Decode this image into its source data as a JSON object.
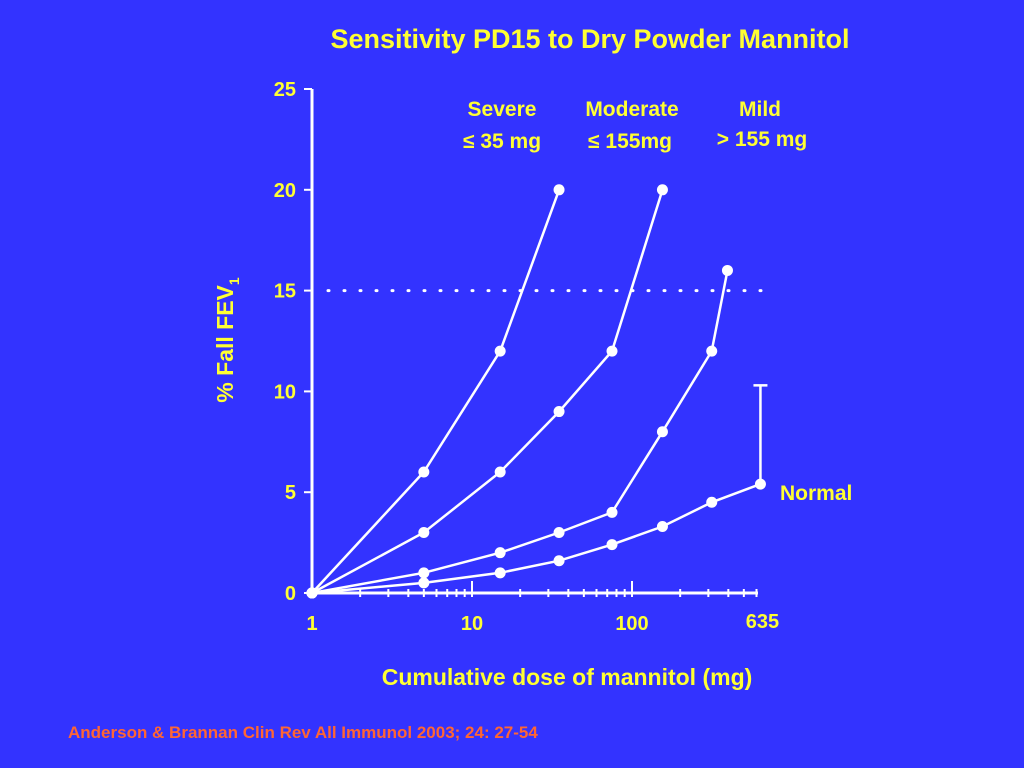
{
  "chart_data": {
    "type": "line",
    "title": "Sensitivity PD15 to Dry Powder Mannitol",
    "xlabel": "Cumulative dose of mannitol (mg)",
    "ylabel_main": "% Fall FEV",
    "ylabel_sub": "1",
    "x_scale": "log",
    "xlim": [
      1,
      635
    ],
    "ylim": [
      0,
      25
    ],
    "x_ticks": [
      "1",
      "10",
      "100",
      "635"
    ],
    "y_ticks": [
      "0",
      "5",
      "10",
      "15",
      "20",
      "25"
    ],
    "threshold_line": 15,
    "series": [
      {
        "name": "Severe",
        "x": [
          1,
          5,
          15,
          35
        ],
        "y": [
          0,
          6,
          12,
          20
        ]
      },
      {
        "name": "Moderate",
        "x": [
          1,
          5,
          15,
          35,
          75,
          155
        ],
        "y": [
          0,
          3,
          6,
          9,
          12,
          20
        ]
      },
      {
        "name": "Mild",
        "x": [
          1,
          5,
          15,
          35,
          75,
          155,
          315,
          395
        ],
        "y": [
          0,
          1,
          2,
          3,
          4,
          8,
          12,
          16
        ]
      },
      {
        "name": "Normal",
        "x": [
          1,
          5,
          15,
          35,
          75,
          155,
          315,
          635
        ],
        "y": [
          0,
          0.5,
          1,
          1.6,
          2.4,
          3.3,
          4.5,
          5.4
        ]
      }
    ],
    "error_bar": {
      "x": 635,
      "y_low": 5.4,
      "y_high": 10.3
    },
    "annotations": {
      "severe": {
        "line1": "Severe",
        "line2": "≤ 35 mg"
      },
      "moderate": {
        "line1": "Moderate",
        "line2": "≤ 155mg"
      },
      "mild": {
        "line1": "Mild",
        "line2": "> 155 mg"
      },
      "normal": "Normal"
    }
  },
  "citation": "Anderson & Brannan Clin Rev All Immunol 2003; 24: 27-54",
  "colors": {
    "background": "#3333ff",
    "text": "#ffff33",
    "lines": "#ffffff",
    "citation": "#ff6633"
  }
}
